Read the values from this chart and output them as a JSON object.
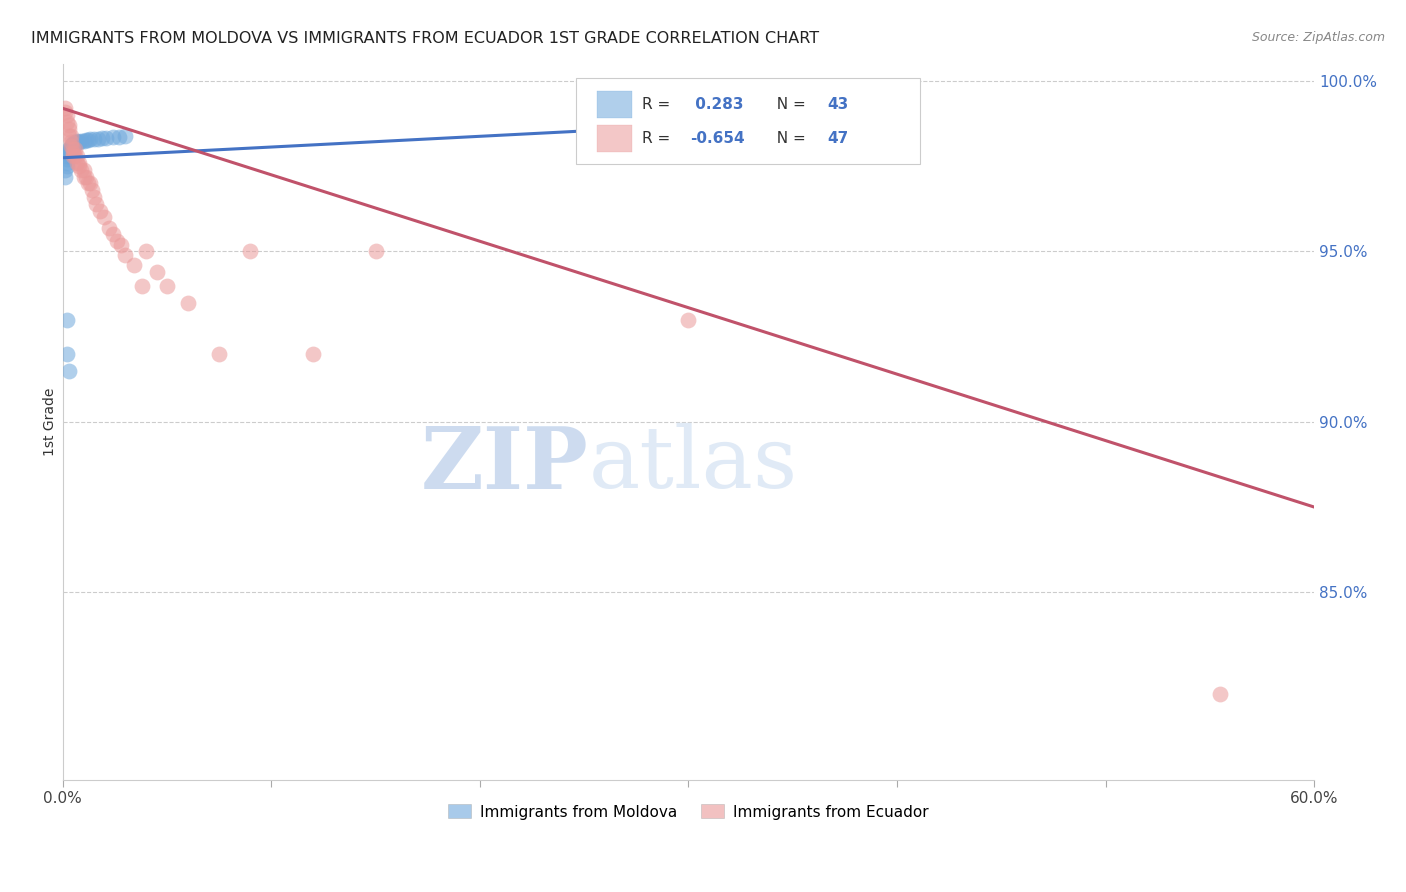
{
  "title": "IMMIGRANTS FROM MOLDOVA VS IMMIGRANTS FROM ECUADOR 1ST GRADE CORRELATION CHART",
  "source": "Source: ZipAtlas.com",
  "ylabel": "1st Grade",
  "ytick_values": [
    1.0,
    0.95,
    0.9,
    0.85
  ],
  "legend_r_moldova": "R =  0.283",
  "legend_n_moldova": "N = 43",
  "legend_r_ecuador": "R = -0.654",
  "legend_n_ecuador": "N = 47",
  "moldova_color": "#6fa8dc",
  "ecuador_color": "#ea9999",
  "moldova_line_color": "#4472c4",
  "ecuador_line_color": "#c0526a",
  "watermark_zip": "ZIP",
  "watermark_atlas": "atlas",
  "watermark_color": "#ccd9f0",
  "legend_label_moldova": "Immigrants from Moldova",
  "legend_label_ecuador": "Immigrants from Ecuador",
  "moldova_scatter_x": [
    0.001,
    0.001,
    0.002,
    0.002,
    0.002,
    0.002,
    0.003,
    0.003,
    0.003,
    0.003,
    0.003,
    0.003,
    0.004,
    0.004,
    0.004,
    0.004,
    0.004,
    0.005,
    0.005,
    0.005,
    0.005,
    0.006,
    0.006,
    0.006,
    0.007,
    0.007,
    0.007,
    0.008,
    0.009,
    0.01,
    0.011,
    0.012,
    0.013,
    0.015,
    0.017,
    0.019,
    0.021,
    0.024,
    0.027,
    0.03,
    0.002,
    0.002,
    0.003
  ],
  "moldova_scatter_y": [
    0.972,
    0.974,
    0.975,
    0.976,
    0.977,
    0.978,
    0.978,
    0.9785,
    0.979,
    0.979,
    0.9795,
    0.98,
    0.98,
    0.98,
    0.9805,
    0.9808,
    0.981,
    0.981,
    0.9812,
    0.9815,
    0.9818,
    0.9815,
    0.9818,
    0.982,
    0.982,
    0.9822,
    0.9825,
    0.9822,
    0.9825,
    0.9825,
    0.9828,
    0.9828,
    0.983,
    0.983,
    0.983,
    0.9832,
    0.9832,
    0.9835,
    0.9835,
    0.9838,
    0.93,
    0.92,
    0.915
  ],
  "ecuador_scatter_x": [
    0.001,
    0.001,
    0.002,
    0.002,
    0.003,
    0.003,
    0.003,
    0.004,
    0.004,
    0.004,
    0.005,
    0.005,
    0.005,
    0.006,
    0.006,
    0.007,
    0.007,
    0.008,
    0.008,
    0.009,
    0.01,
    0.01,
    0.011,
    0.012,
    0.013,
    0.014,
    0.015,
    0.016,
    0.018,
    0.02,
    0.022,
    0.024,
    0.026,
    0.028,
    0.03,
    0.034,
    0.038,
    0.04,
    0.045,
    0.05,
    0.06,
    0.075,
    0.09,
    0.12,
    0.15,
    0.3,
    0.555
  ],
  "ecuador_scatter_y": [
    0.992,
    0.991,
    0.99,
    0.988,
    0.987,
    0.986,
    0.984,
    0.984,
    0.982,
    0.981,
    0.98,
    0.979,
    0.978,
    0.98,
    0.978,
    0.978,
    0.976,
    0.976,
    0.975,
    0.974,
    0.974,
    0.972,
    0.972,
    0.97,
    0.97,
    0.968,
    0.966,
    0.964,
    0.962,
    0.96,
    0.957,
    0.955,
    0.953,
    0.952,
    0.949,
    0.946,
    0.94,
    0.95,
    0.944,
    0.94,
    0.935,
    0.92,
    0.95,
    0.92,
    0.95,
    0.93,
    0.82
  ],
  "xlim": [
    0.0,
    0.6
  ],
  "ylim": [
    0.795,
    1.005
  ],
  "xtick_positions": [
    0.0,
    0.1,
    0.2,
    0.3,
    0.4,
    0.5,
    0.6
  ],
  "xtick_labels_show": [
    "0.0%",
    "",
    "",
    "",
    "",
    "",
    "60.0%"
  ]
}
